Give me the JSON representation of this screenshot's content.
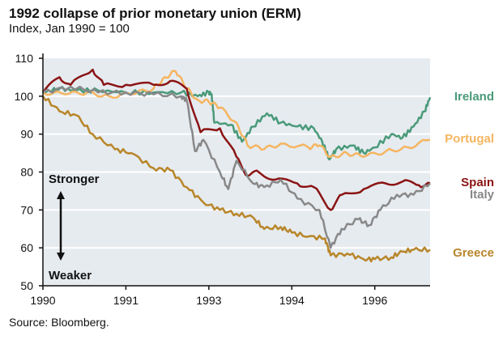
{
  "chart_data": {
    "type": "line",
    "title": "1992 collapse of prior monetary union (ERM)",
    "subtitle": "Index, Jan 1990 = 100",
    "source": "Source: Bloomberg.",
    "xlabel": "",
    "ylabel": "",
    "xlim": [
      1990,
      1997
    ],
    "ylim": [
      50,
      110
    ],
    "yticks": [
      50,
      60,
      70,
      80,
      90,
      100,
      110
    ],
    "xticks": [
      {
        "value": 1990,
        "label": "1990"
      },
      {
        "value": 1991.5,
        "label": "1991"
      },
      {
        "value": 1993,
        "label": "1993"
      },
      {
        "value": 1994.5,
        "label": "1994"
      },
      {
        "value": 1996,
        "label": "1996"
      }
    ],
    "grid": true,
    "annotations": {
      "stronger": "Stronger",
      "weaker": "Weaker"
    },
    "series": [
      {
        "name": "Ireland",
        "color": "#4a9a7a",
        "x": [
          1990,
          1990.3,
          1990.6,
          1991,
          1991.5,
          1992,
          1992.5,
          1992.8,
          1993.0,
          1993.05,
          1993.1,
          1993.4,
          1993.6,
          1993.8,
          1994.05,
          1994.3,
          1994.6,
          1994.9,
          1995.05,
          1995.18,
          1995.3,
          1995.6,
          1995.8,
          1996.0,
          1996.3,
          1996.5,
          1996.7,
          1996.9,
          1997.0
        ],
        "y": [
          101,
          102,
          101.5,
          101.5,
          101,
          101,
          101,
          100,
          101,
          100.5,
          93,
          92.5,
          88,
          92,
          95.5,
          93,
          92,
          91.5,
          88,
          83.3,
          86,
          87,
          85,
          86.5,
          90,
          89,
          92,
          96,
          99.7
        ]
      },
      {
        "name": "Portugal",
        "color": "#f5b560",
        "x": [
          1990,
          1990.4,
          1990.8,
          1991.2,
          1991.6,
          1992.0,
          1992.2,
          1992.4,
          1992.6,
          1992.8,
          1993.0,
          1993.2,
          1993.5,
          1993.7,
          1994.0,
          1994.3,
          1994.8,
          1995.0,
          1995.2,
          1995.5,
          1995.8,
          1996.2,
          1996.6,
          1997.0
        ],
        "y": [
          101,
          100.5,
          101,
          100,
          100.5,
          102,
          105,
          106.5,
          102,
          99,
          98.5,
          97,
          93,
          87,
          86,
          87.5,
          86.5,
          87,
          84,
          85,
          84,
          85.5,
          86.5,
          88.5
        ]
      },
      {
        "name": "Spain",
        "color": "#8b1414",
        "x": [
          1990,
          1990.3,
          1990.5,
          1990.9,
          1991.1,
          1991.5,
          1992.0,
          1992.3,
          1992.6,
          1992.85,
          1993.2,
          1993.5,
          1993.7,
          1993.9,
          1994.2,
          1994.6,
          1994.9,
          1995.2,
          1995.4,
          1995.8,
          1996.2,
          1996.5,
          1996.8,
          1997.0
        ],
        "y": [
          101,
          105,
          103,
          107,
          103,
          103,
          103,
          104,
          102,
          90.5,
          91.5,
          84,
          79,
          80,
          78,
          77,
          76,
          70,
          74,
          75.5,
          77,
          77.5,
          76.5,
          77
        ]
      },
      {
        "name": "Italy",
        "color": "#888888",
        "x": [
          1990,
          1990.5,
          1991,
          1991.5,
          1992,
          1992.5,
          1992.6,
          1992.75,
          1992.9,
          1993.2,
          1993.35,
          1993.5,
          1993.8,
          1994.0,
          1994.3,
          1994.6,
          1995.0,
          1995.2,
          1995.4,
          1995.7,
          1995.9,
          1996.1,
          1996.4,
          1996.7,
          1997.0
        ],
        "y": [
          101,
          102.5,
          101,
          101,
          100.5,
          100,
          99,
          85.5,
          88.5,
          80,
          75.5,
          83,
          77,
          76,
          78,
          73,
          70,
          60,
          65,
          67.5,
          66,
          70,
          74,
          74,
          77
        ]
      },
      {
        "name": "Greece",
        "color": "#b8862a",
        "x": [
          1990,
          1990.3,
          1990.6,
          1990.9,
          1991.3,
          1991.6,
          1992.0,
          1992.3,
          1992.6,
          1992.9,
          1993.2,
          1993.5,
          1993.8,
          1994.0,
          1994.3,
          1994.5,
          1994.8,
          1995.1,
          1995.2,
          1995.5,
          1995.8,
          1996.0,
          1996.3,
          1996.5,
          1996.7,
          1997.0
        ],
        "y": [
          100,
          96,
          95,
          90,
          86,
          85,
          81,
          80.5,
          76,
          72,
          70,
          69,
          68,
          65,
          65.5,
          64,
          63,
          62.5,
          58,
          58.5,
          57,
          57,
          57.5,
          59,
          59.5,
          59.5
        ]
      }
    ]
  }
}
